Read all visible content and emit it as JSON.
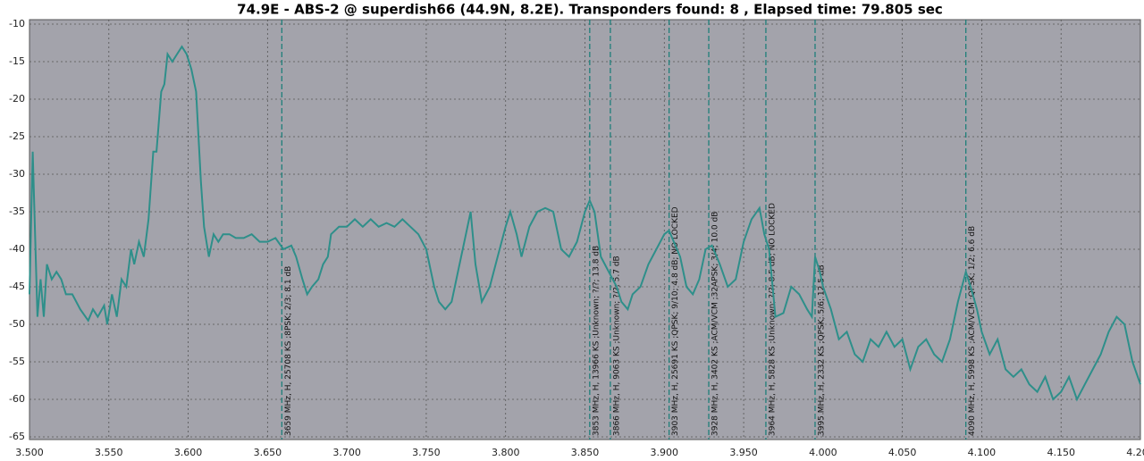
{
  "chart_data": {
    "type": "line",
    "title": "74.9E - ABS-2 @ superdish66 (44.9N, 8.2E). Transponders found: 8 , Elapsed time: 79.805 sec",
    "xlim": [
      3.5,
      4.2
    ],
    "ylim": [
      -65,
      -10
    ],
    "xticks": [
      {
        "value": 3.5,
        "label": "3.500"
      },
      {
        "value": 3.55,
        "label": "3.550"
      },
      {
        "value": 3.6,
        "label": "3.600"
      },
      {
        "value": 3.65,
        "label": "3.650"
      },
      {
        "value": 3.7,
        "label": "3.700"
      },
      {
        "value": 3.75,
        "label": "3.750"
      },
      {
        "value": 3.8,
        "label": "3.800"
      },
      {
        "value": 3.85,
        "label": "3.850"
      },
      {
        "value": 3.9,
        "label": "3.900"
      },
      {
        "value": 3.95,
        "label": "3.950"
      },
      {
        "value": 4.0,
        "label": "4.000"
      },
      {
        "value": 4.05,
        "label": "4.050"
      },
      {
        "value": 4.1,
        "label": "4.100"
      },
      {
        "value": 4.15,
        "label": "4.150"
      },
      {
        "value": 4.2,
        "label": "4.200"
      }
    ],
    "yticks": [
      -10,
      -15,
      -20,
      -25,
      -30,
      -35,
      -40,
      -45,
      -50,
      -55,
      -60,
      -65
    ],
    "grid": true,
    "x": [
      3.5,
      3.502,
      3.505,
      3.507,
      3.509,
      3.511,
      3.514,
      3.517,
      3.52,
      3.523,
      3.527,
      3.532,
      3.537,
      3.54,
      3.543,
      3.547,
      3.549,
      3.552,
      3.555,
      3.558,
      3.561,
      3.564,
      3.566,
      3.569,
      3.572,
      3.575,
      3.578,
      3.58,
      3.583,
      3.585,
      3.587,
      3.59,
      3.593,
      3.596,
      3.599,
      3.602,
      3.605,
      3.608,
      3.61,
      3.613,
      3.616,
      3.619,
      3.622,
      3.626,
      3.63,
      3.635,
      3.64,
      3.645,
      3.65,
      3.655,
      3.66,
      3.665,
      3.668,
      3.672,
      3.675,
      3.678,
      3.682,
      3.685,
      3.688,
      3.69,
      3.695,
      3.7,
      3.705,
      3.71,
      3.715,
      3.72,
      3.725,
      3.73,
      3.735,
      3.74,
      3.745,
      3.75,
      3.755,
      3.758,
      3.762,
      3.766,
      3.77,
      3.775,
      3.778,
      3.781,
      3.785,
      3.79,
      3.795,
      3.8,
      3.803,
      3.807,
      3.81,
      3.815,
      3.82,
      3.825,
      3.83,
      3.835,
      3.84,
      3.845,
      3.85,
      3.853,
      3.856,
      3.86,
      3.865,
      3.87,
      3.873,
      3.877,
      3.88,
      3.885,
      3.89,
      3.895,
      3.9,
      3.903,
      3.906,
      3.91,
      3.914,
      3.918,
      3.922,
      3.926,
      3.93,
      3.935,
      3.94,
      3.945,
      3.95,
      3.955,
      3.96,
      3.963,
      3.966,
      3.97,
      3.975,
      3.98,
      3.985,
      3.99,
      3.993,
      3.995,
      3.998,
      4.0,
      4.005,
      4.01,
      4.015,
      4.02,
      4.025,
      4.03,
      4.035,
      4.04,
      4.045,
      4.05,
      4.055,
      4.06,
      4.065,
      4.07,
      4.075,
      4.08,
      4.085,
      4.09,
      4.093,
      4.097,
      4.1,
      4.105,
      4.11,
      4.115,
      4.12,
      4.125,
      4.13,
      4.135,
      4.14,
      4.145,
      4.15,
      4.155,
      4.16,
      4.165,
      4.17,
      4.175,
      4.18,
      4.185,
      4.19,
      4.195,
      4.2
    ],
    "series": [
      {
        "color": "#2e8f8a",
        "values": [
          -46,
          -27,
          -49,
          -44,
          -49,
          -42,
          -44,
          -43,
          -44,
          -46,
          -46,
          -48,
          -49.5,
          -48,
          -49,
          -47.5,
          -50,
          -46,
          -49,
          -44,
          -45,
          -40,
          -42,
          -39,
          -41,
          -36,
          -27,
          -27,
          -19,
          -18,
          -14,
          -15,
          -14,
          -13,
          -14,
          -16,
          -19,
          -31,
          -37,
          -41,
          -38,
          -39,
          -38,
          -38,
          -38.5,
          -38.5,
          -38,
          -39,
          -39,
          -38.5,
          -40,
          -39.5,
          -41,
          -44,
          -46,
          -45,
          -44,
          -42,
          -41,
          -38,
          -37,
          -37,
          -36,
          -37,
          -36,
          -37,
          -36.5,
          -37,
          -36,
          -37,
          -38,
          -40,
          -45,
          -47,
          -48,
          -47,
          -43,
          -38,
          -35,
          -42,
          -47,
          -45,
          -41,
          -37,
          -35,
          -38,
          -41,
          -37,
          -35,
          -34.5,
          -35,
          -40,
          -41,
          -39,
          -35,
          -33.5,
          -35,
          -41,
          -43,
          -45,
          -47,
          -48,
          -46,
          -45,
          -42,
          -40,
          -38,
          -37.5,
          -39,
          -41,
          -45,
          -46,
          -44,
          -40,
          -39.5,
          -42,
          -45,
          -44,
          -39,
          -36,
          -34.5,
          -38,
          -40,
          -49,
          -48.5,
          -45,
          -46,
          -48,
          -49,
          -41,
          -43,
          -45,
          -48,
          -52,
          -51,
          -54,
          -55,
          -52,
          -53,
          -51,
          -53,
          -52,
          -56,
          -53,
          -52,
          -54,
          -55,
          -52,
          -47,
          -43,
          -45,
          -48,
          -51,
          -54,
          -52,
          -56,
          -57,
          -56,
          -58,
          -59,
          -57,
          -60,
          -59,
          -57,
          -60,
          -58,
          -56,
          -54,
          -51,
          -49,
          -50,
          -55,
          -58
        ]
      }
    ],
    "markers": [
      {
        "x": 3.659,
        "label": "3659 MHz, H, 25708 KS ;8PSK; 2/3; 8.1 dB"
      },
      {
        "x": 3.853,
        "label": "3853 MHz, H, 13966 KS ;Unknown; ?/?; 13.8 dB"
      },
      {
        "x": 3.866,
        "label": "3866 MHz, H, 9063 KS ;Unknown; ?/?; 5.7 dB"
      },
      {
        "x": 3.903,
        "label": "3903 MHz, H, 25691 KS ;QPSK; 9/10; 4.8 dB; NO LOCKED"
      },
      {
        "x": 3.928,
        "label": "3928 MHz, H, 3402 KS ;ACM/VCM ;32APSK; 3/4; 10.0 dB"
      },
      {
        "x": 3.964,
        "label": "3964 MHz, H, 5828 KS ;Unknown; ?/?; 8.5 dB; NO LOCKED"
      },
      {
        "x": 3.995,
        "label": "3995 MHz, H, 2332 KS ;QPSK; 5/6; 12.5 dB"
      },
      {
        "x": 4.09,
        "label": "4090 MHz, H, 5998 KS ;ACM/VCM ;QPSK; 1/2; 6.6 dB"
      }
    ]
  }
}
